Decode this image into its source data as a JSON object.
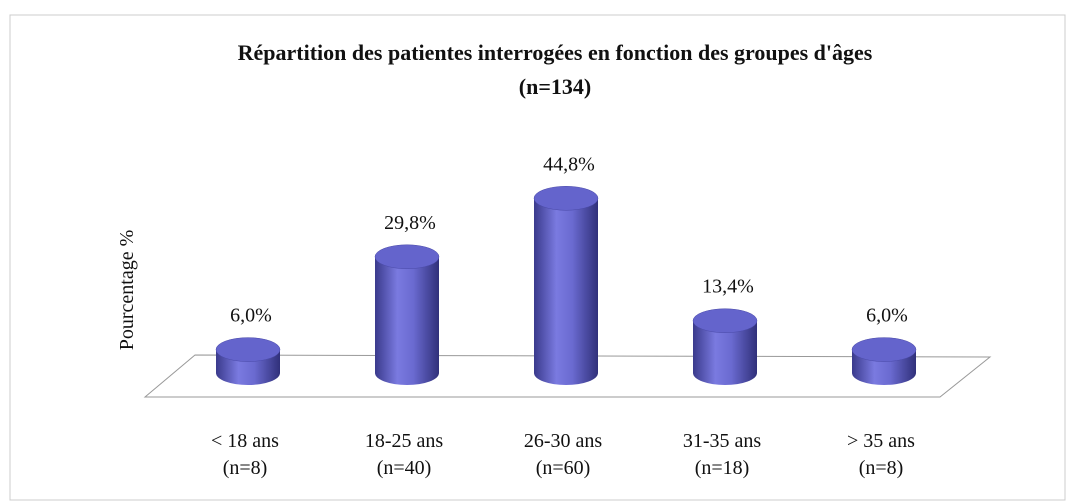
{
  "chart_data": {
    "type": "bar",
    "title": [
      "Répartition  des patientes interrogées en fonction des groupes d'âges",
      "(n=134)"
    ],
    "y_label": "Pourcentage %",
    "categories": [
      [
        "< 18 ans",
        "(n=8)"
      ],
      [
        "18-25 ans",
        "(n=40)"
      ],
      [
        "26-30 ans",
        "(n=60)"
      ],
      [
        "31-35 ans",
        "(n=18)"
      ],
      [
        "> 35 ans",
        "(n=8)"
      ]
    ],
    "values": [
      6.0,
      29.8,
      44.8,
      13.4,
      6.0
    ],
    "value_labels": [
      "6,0%",
      "29,8%",
      "44,8%",
      "13,4%",
      "6,0%"
    ],
    "color": "#6464cc",
    "ylim": [
      0,
      50
    ]
  }
}
